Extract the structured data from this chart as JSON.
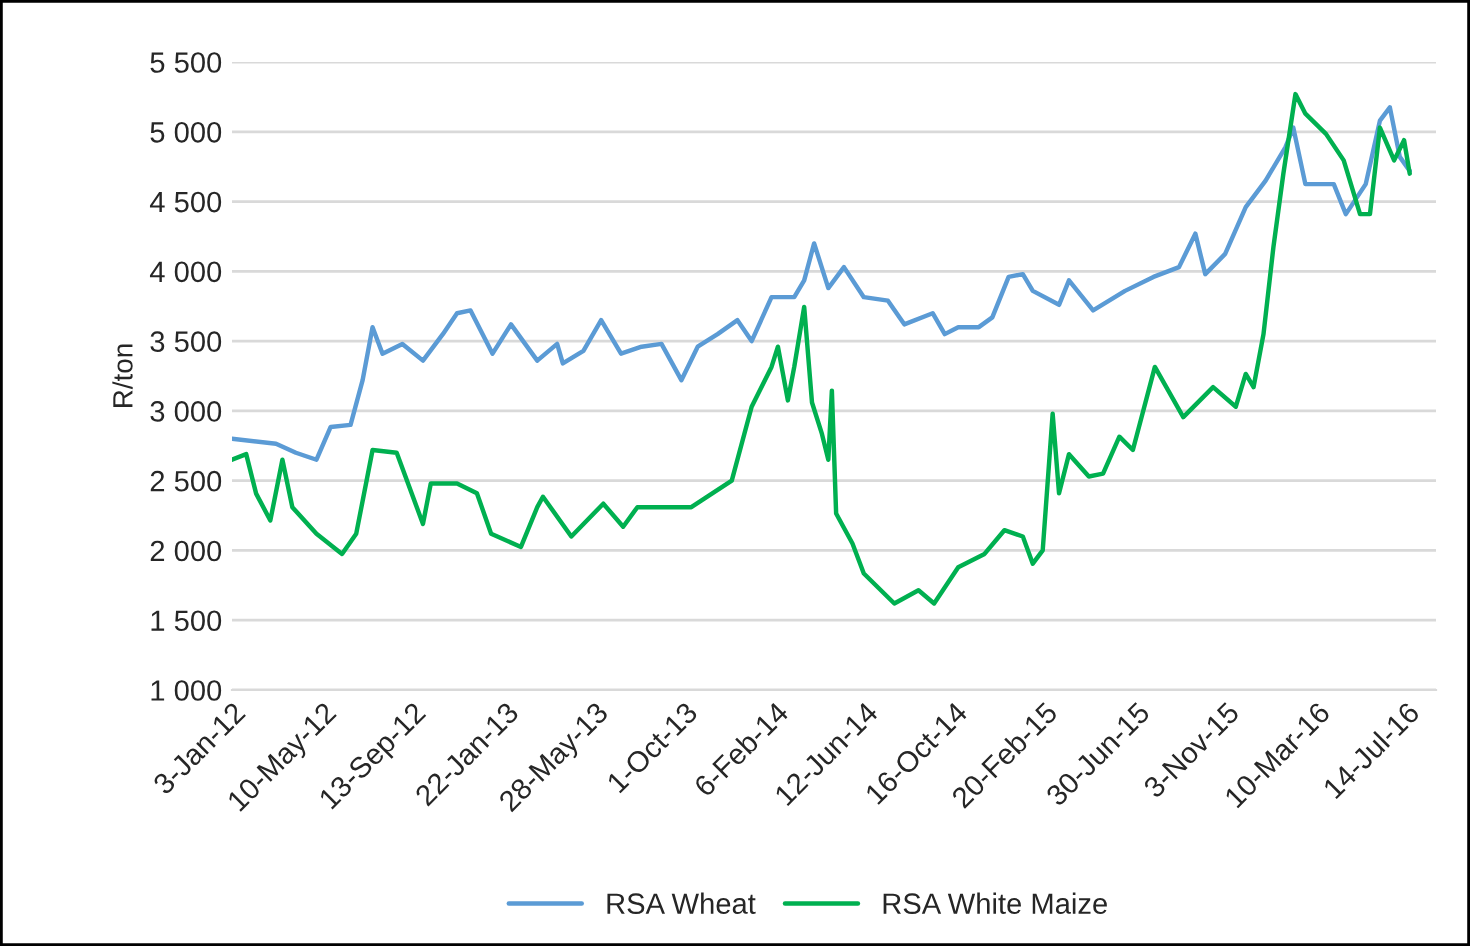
{
  "chart_data": {
    "type": "line",
    "ylabel": "R/ton",
    "xlim": [
      "2012-01-03",
      "2016-08-25"
    ],
    "ylim": [
      1000,
      5500
    ],
    "yticks": [
      {
        "value": 1000,
        "label": "1 000"
      },
      {
        "value": 1500,
        "label": "1 500"
      },
      {
        "value": 2000,
        "label": "2 000"
      },
      {
        "value": 2500,
        "label": "2 500"
      },
      {
        "value": 3000,
        "label": "3 000"
      },
      {
        "value": 3500,
        "label": "3 500"
      },
      {
        "value": 4000,
        "label": "4 000"
      },
      {
        "value": 4500,
        "label": "4 500"
      },
      {
        "value": 5000,
        "label": "5 000"
      },
      {
        "value": 5500,
        "label": "5 500"
      }
    ],
    "xticks": [
      {
        "value": "2012-01-03",
        "label": "3-Jan-12"
      },
      {
        "value": "2012-05-10",
        "label": "10-May-12"
      },
      {
        "value": "2012-09-13",
        "label": "13-Sep-12"
      },
      {
        "value": "2013-01-22",
        "label": "22-Jan-13"
      },
      {
        "value": "2013-05-28",
        "label": "28-May-13"
      },
      {
        "value": "2013-10-01",
        "label": "1-Oct-13"
      },
      {
        "value": "2014-02-06",
        "label": "6-Feb-14"
      },
      {
        "value": "2014-06-12",
        "label": "12-Jun-14"
      },
      {
        "value": "2014-10-16",
        "label": "16-Oct-14"
      },
      {
        "value": "2015-02-20",
        "label": "20-Feb-15"
      },
      {
        "value": "2015-06-30",
        "label": "30-Jun-15"
      },
      {
        "value": "2015-11-03",
        "label": "3-Nov-15"
      },
      {
        "value": "2016-03-10",
        "label": "10-Mar-16"
      },
      {
        "value": "2016-07-14",
        "label": "14-Jul-16"
      }
    ],
    "grid": "y",
    "legend": "bottom",
    "marker": "none",
    "line_style": "solid",
    "series": [
      {
        "name": "RSA Wheat",
        "color": "#5b9bd5",
        "x": [
          "2012-01-03",
          "2012-03-05",
          "2012-04-02",
          "2012-05-01",
          "2012-05-21",
          "2012-06-18",
          "2012-07-05",
          "2012-07-19",
          "2012-08-02",
          "2012-08-30",
          "2012-09-28",
          "2012-10-26",
          "2012-11-15",
          "2012-12-04",
          "2013-01-04",
          "2013-01-30",
          "2013-03-08",
          "2013-04-05",
          "2013-04-13",
          "2013-05-12",
          "2013-06-06",
          "2013-07-04",
          "2013-08-02",
          "2013-08-30",
          "2013-09-27",
          "2013-10-20",
          "2013-11-17",
          "2013-12-15",
          "2014-01-04",
          "2014-02-01",
          "2014-03-05",
          "2014-03-19",
          "2014-04-02",
          "2014-04-22",
          "2014-05-14",
          "2014-06-11",
          "2014-07-15",
          "2014-08-07",
          "2014-09-16",
          "2014-10-03",
          "2014-10-22",
          "2014-11-20",
          "2014-12-09",
          "2015-01-01",
          "2015-01-21",
          "2015-02-04",
          "2015-03-13",
          "2015-03-27",
          "2015-04-30",
          "2015-06-14",
          "2015-07-24",
          "2015-08-29",
          "2015-09-21",
          "2015-10-05",
          "2015-11-02",
          "2015-12-01",
          "2015-12-29",
          "2016-01-26",
          "2016-02-06",
          "2016-02-23",
          "2016-04-03",
          "2016-04-20",
          "2016-05-18",
          "2016-06-07",
          "2016-06-21",
          "2016-07-05",
          "2016-07-19"
        ],
        "values": [
          2800,
          2765,
          2700,
          2650,
          2885,
          2900,
          3220,
          3600,
          3410,
          3480,
          3360,
          3550,
          3700,
          3720,
          3410,
          3620,
          3360,
          3480,
          3340,
          3430,
          3650,
          3410,
          3460,
          3480,
          3220,
          3460,
          3550,
          3650,
          3500,
          3815,
          3815,
          3935,
          4200,
          3880,
          4030,
          3815,
          3790,
          3620,
          3700,
          3550,
          3600,
          3600,
          3670,
          3960,
          3980,
          3860,
          3760,
          3935,
          3720,
          3860,
          3960,
          4030,
          4270,
          3980,
          4125,
          4460,
          4650,
          4890,
          5030,
          4625,
          4625,
          4410,
          4625,
          5080,
          5175,
          4820,
          4720
        ]
      },
      {
        "name": "RSA White Maize",
        "color": "#00b050",
        "x": [
          "2012-01-03",
          "2012-01-23",
          "2012-02-06",
          "2012-02-26",
          "2012-03-14",
          "2012-03-28",
          "2012-05-01",
          "2012-06-06",
          "2012-06-26",
          "2012-07-19",
          "2012-08-22",
          "2012-09-28",
          "2012-10-09",
          "2012-11-15",
          "2012-12-13",
          "2013-01-02",
          "2013-02-13",
          "2013-03-08",
          "2013-03-16",
          "2013-04-25",
          "2013-06-09",
          "2013-07-07",
          "2013-07-27",
          "2013-10-11",
          "2013-12-07",
          "2014-01-04",
          "2014-02-01",
          "2014-02-10",
          "2014-02-24",
          "2014-03-05",
          "2014-03-19",
          "2014-03-30",
          "2014-04-13",
          "2014-04-22",
          "2014-04-27",
          "2014-05-03",
          "2014-05-26",
          "2014-06-11",
          "2014-07-24",
          "2014-08-27",
          "2014-09-18",
          "2014-10-22",
          "2014-11-28",
          "2014-12-26",
          "2015-01-21",
          "2015-02-04",
          "2015-02-18",
          "2015-03-04",
          "2015-03-13",
          "2015-03-27",
          "2015-04-24",
          "2015-05-14",
          "2015-06-06",
          "2015-06-25",
          "2015-07-26",
          "2015-09-04",
          "2015-10-16",
          "2015-11-17",
          "2015-12-01",
          "2015-12-12",
          "2015-12-26",
          "2016-01-09",
          "2016-01-23",
          "2016-02-09",
          "2016-02-23",
          "2016-03-23",
          "2016-04-17",
          "2016-05-10",
          "2016-05-24",
          "2016-06-07",
          "2016-06-27",
          "2016-07-11",
          "2016-07-19"
        ],
        "values": [
          2650,
          2690,
          2407,
          2215,
          2650,
          2310,
          2120,
          1975,
          2120,
          2720,
          2700,
          2190,
          2480,
          2480,
          2410,
          2120,
          2025,
          2310,
          2385,
          2100,
          2335,
          2170,
          2310,
          2310,
          2500,
          3030,
          3315,
          3460,
          3075,
          3315,
          3745,
          3060,
          2835,
          2650,
          3145,
          2265,
          2050,
          1835,
          1620,
          1715,
          1620,
          1880,
          1975,
          2145,
          2100,
          1905,
          2000,
          2980,
          2410,
          2690,
          2530,
          2550,
          2815,
          2720,
          3315,
          2955,
          3170,
          3030,
          3265,
          3170,
          3550,
          4175,
          4700,
          5270,
          5130,
          4985,
          4795,
          4410,
          4410,
          5030,
          4795,
          4940,
          4700
        ]
      }
    ]
  }
}
